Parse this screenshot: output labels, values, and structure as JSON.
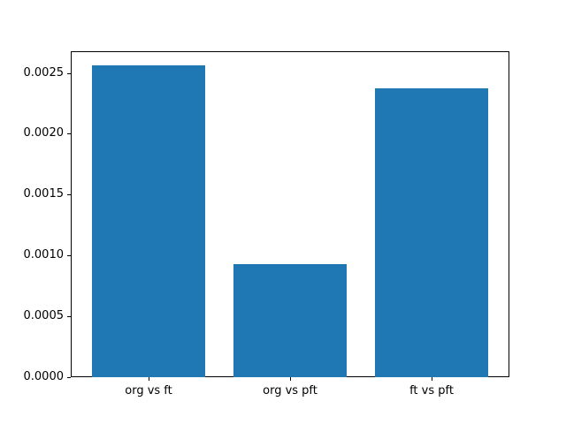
{
  "figure": {
    "background": "#ffffff"
  },
  "chart_data": {
    "type": "bar",
    "categories": [
      "org vs ft",
      "org vs pft",
      "ft vs pft"
    ],
    "values": [
      0.00256,
      0.00093,
      0.00237
    ],
    "title": "",
    "xlabel": "",
    "ylabel": "",
    "ylim": [
      0,
      0.002678
    ],
    "yticks": [
      0.0,
      0.0005,
      0.001,
      0.0015,
      0.002,
      0.0025
    ],
    "ytick_labels": [
      "0.0000",
      "0.0005",
      "0.0010",
      "0.0015",
      "0.0020",
      "0.0025"
    ],
    "bar_color": "#1f77b4",
    "bar_width_fraction": 0.8,
    "grid": false,
    "legend": "none"
  }
}
